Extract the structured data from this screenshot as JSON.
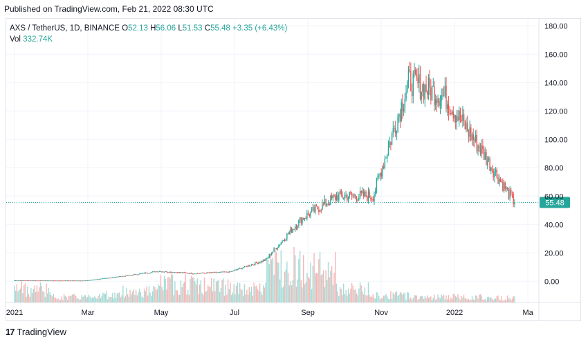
{
  "published": "Published on TradingView.com, Feb 21, 2022 08:30 UTC",
  "legend": {
    "symbol": "AXS / TetherUS, 1D, BINANCE",
    "o_label": "O",
    "o": "52.13",
    "h_label": "H",
    "h": "56.06",
    "l_label": "L",
    "l": "51.53",
    "c_label": "C",
    "c": "55.48",
    "change": "+3.35 (+6.43%)",
    "vol_label": "Vol",
    "vol": "332.74K"
  },
  "brand": {
    "logo": "17",
    "name": "TradingView"
  },
  "colors": {
    "up": "#26a69a",
    "down": "#ef5350",
    "up_vol": "#a5dbd6",
    "down_vol": "#f7b6b5",
    "grid": "#f0f3fa",
    "price_line": "#26a69a"
  },
  "chart_data": {
    "type": "candlestick",
    "title": "AXS / TetherUS, 1D, BINANCE",
    "ylim": [
      -15,
      185
    ],
    "y_ticks": [
      "180.00",
      "160.00",
      "140.00",
      "120.00",
      "100.00",
      "80.00",
      "60.00",
      "40.00",
      "20.00",
      "0.00"
    ],
    "y_tick_values": [
      180,
      160,
      140,
      120,
      100,
      80,
      60,
      40,
      20,
      0
    ],
    "x_ticks": [
      "2021",
      "Mar",
      "May",
      "Jul",
      "Sep",
      "Nov",
      "2022",
      "Ma"
    ],
    "x_tick_months": [
      0,
      2,
      4,
      6,
      8,
      10,
      12,
      14
    ],
    "last_price": "55.48",
    "last_price_value": 55.48,
    "grid": true,
    "monthly_close": [
      0.6,
      0.5,
      0.5,
      3.5,
      7.0,
      5.5,
      6.5,
      15.0,
      44.0,
      60.0,
      60.0,
      141.0,
      130.0,
      93.0,
      53.0,
      55.48
    ],
    "volume_profile": [
      15,
      6,
      8,
      12,
      20,
      18,
      14,
      40,
      35,
      14,
      8,
      6,
      6,
      5,
      6,
      4
    ]
  }
}
